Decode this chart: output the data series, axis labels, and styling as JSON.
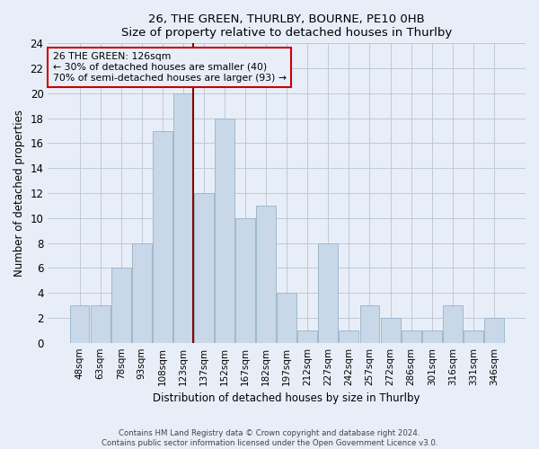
{
  "title": "26, THE GREEN, THURLBY, BOURNE, PE10 0HB",
  "subtitle": "Size of property relative to detached houses in Thurlby",
  "xlabel": "Distribution of detached houses by size in Thurlby",
  "ylabel": "Number of detached properties",
  "categories": [
    "48sqm",
    "63sqm",
    "78sqm",
    "93sqm",
    "108sqm",
    "123sqm",
    "137sqm",
    "152sqm",
    "167sqm",
    "182sqm",
    "197sqm",
    "212sqm",
    "227sqm",
    "242sqm",
    "257sqm",
    "272sqm",
    "286sqm",
    "301sqm",
    "316sqm",
    "331sqm",
    "346sqm"
  ],
  "values": [
    3,
    3,
    6,
    8,
    17,
    20,
    12,
    18,
    10,
    11,
    4,
    1,
    8,
    1,
    3,
    2,
    1,
    1,
    3,
    1,
    2
  ],
  "bar_color": "#c8d8e8",
  "bar_edgecolor": "#a0b8cc",
  "vline_x_index": 5.5,
  "property_line_label": "26 THE GREEN: 126sqm",
  "annotation_line1": "← 30% of detached houses are smaller (40)",
  "annotation_line2": "70% of semi-detached houses are larger (93) →",
  "vline_color": "#8b0000",
  "box_edgecolor": "#cc0000",
  "ylim": [
    0,
    24
  ],
  "yticks": [
    0,
    2,
    4,
    6,
    8,
    10,
    12,
    14,
    16,
    18,
    20,
    22,
    24
  ],
  "footer1": "Contains HM Land Registry data © Crown copyright and database right 2024.",
  "footer2": "Contains public sector information licensed under the Open Government Licence v3.0.",
  "bg_color": "#e8eef8",
  "grid_color": "#c0c8d8"
}
